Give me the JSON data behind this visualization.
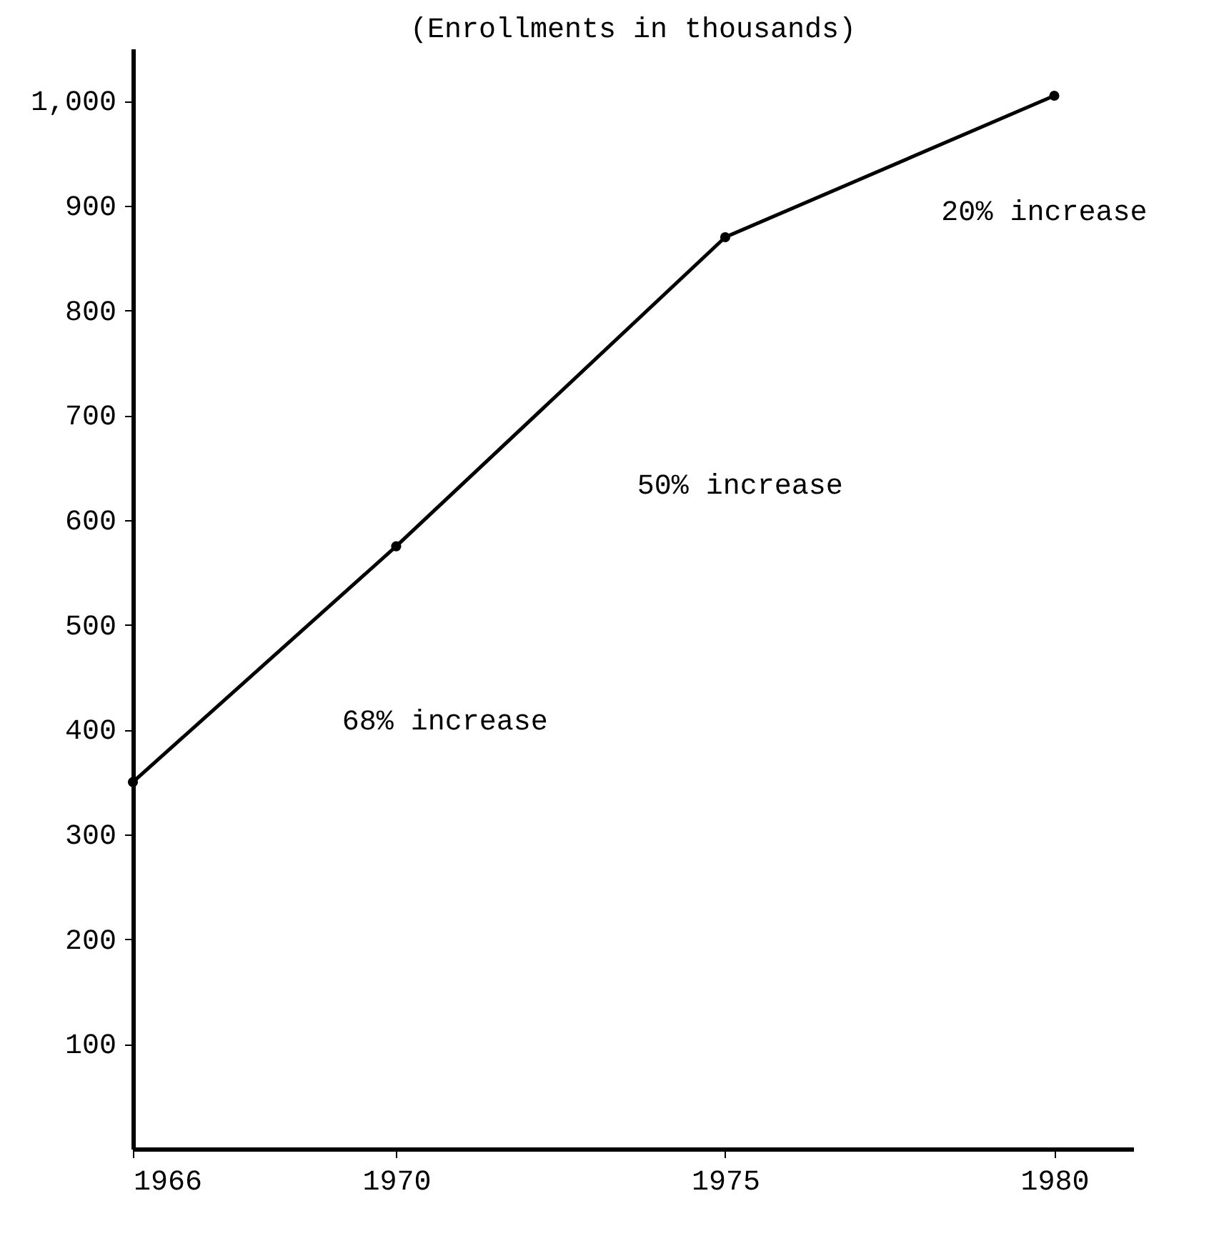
{
  "chart_data": {
    "type": "line",
    "title": "(Enrollments in thousands)",
    "x": [
      1966,
      1970,
      1975,
      1980
    ],
    "series": [
      {
        "color": "#000000",
        "values": [
          350,
          575,
          870,
          1005
        ]
      }
    ],
    "xlim": [
      1966,
      1981.2
    ],
    "xticks": [
      1966,
      1970,
      1975,
      1980
    ],
    "ylim": [
      0,
      1050
    ],
    "yticks": [
      100,
      200,
      300,
      400,
      500,
      600,
      700,
      800,
      900,
      {
        "value": 1000,
        "label": "1,000"
      }
    ],
    "marker": "circle",
    "line_style": "solid",
    "grid": false,
    "annotations": [
      "68% increase",
      "50% increase",
      "20% increase"
    ]
  }
}
